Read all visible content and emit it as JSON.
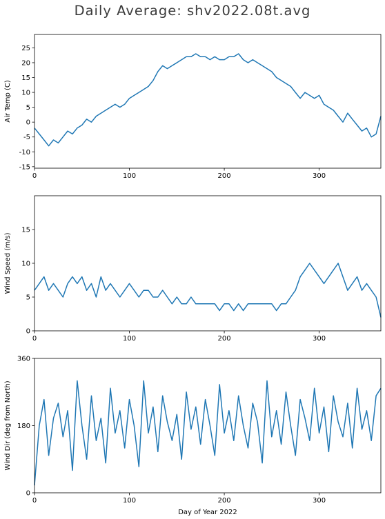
{
  "title": "Daily Average: shv2022.08t.avg",
  "colors": {
    "series": "#1f77b4",
    "axes": "#000000",
    "background": "#ffffff"
  },
  "chart_data": [
    {
      "type": "line",
      "ylabel": "Air Temp (C)",
      "xlabel": "",
      "xlim": [
        0,
        365
      ],
      "ylim": [
        -15.5,
        29.5
      ],
      "xticks": [
        0,
        100,
        200,
        300
      ],
      "yticks": [
        -15,
        -10,
        -5,
        0,
        5,
        10,
        15,
        20,
        25
      ],
      "grid": false,
      "series": [
        {
          "x": [
            0,
            5,
            10,
            15,
            20,
            25,
            30,
            35,
            40,
            45,
            50,
            55,
            60,
            65,
            70,
            75,
            80,
            85,
            90,
            95,
            100,
            105,
            110,
            115,
            120,
            125,
            130,
            135,
            140,
            145,
            150,
            155,
            160,
            165,
            170,
            175,
            180,
            185,
            190,
            195,
            200,
            205,
            210,
            215,
            220,
            225,
            230,
            235,
            240,
            245,
            250,
            255,
            260,
            265,
            270,
            275,
            280,
            285,
            290,
            295,
            300,
            305,
            310,
            315,
            320,
            325,
            330,
            335,
            340,
            345,
            350,
            355,
            360,
            365
          ],
          "y": [
            -2,
            -4,
            -6,
            -8,
            -6,
            -7,
            -5,
            -3,
            -4,
            -2,
            -1,
            1,
            0,
            2,
            3,
            4,
            5,
            6,
            5,
            6,
            8,
            9,
            10,
            11,
            12,
            14,
            17,
            19,
            18,
            19,
            20,
            21,
            22,
            22,
            23,
            22,
            22,
            21,
            22,
            21,
            21,
            22,
            22,
            23,
            21,
            20,
            21,
            20,
            19,
            18,
            17,
            15,
            14,
            13,
            12,
            10,
            8,
            10,
            9,
            8,
            9,
            6,
            5,
            4,
            2,
            0,
            3,
            1,
            -1,
            -3,
            -2,
            -5,
            -4,
            2
          ]
        }
      ]
    },
    {
      "type": "line",
      "ylabel": "Wind Speed (m/s)",
      "xlabel": "",
      "xlim": [
        0,
        365
      ],
      "ylim": [
        0,
        20
      ],
      "xticks": [
        0,
        100,
        200,
        300
      ],
      "yticks": [
        0,
        5,
        10,
        15
      ],
      "grid": false,
      "series": [
        {
          "x": [
            0,
            5,
            10,
            15,
            20,
            25,
            30,
            35,
            40,
            45,
            50,
            55,
            60,
            65,
            70,
            75,
            80,
            85,
            90,
            95,
            100,
            105,
            110,
            115,
            120,
            125,
            130,
            135,
            140,
            145,
            150,
            155,
            160,
            165,
            170,
            175,
            180,
            185,
            190,
            195,
            200,
            205,
            210,
            215,
            220,
            225,
            230,
            235,
            240,
            245,
            250,
            255,
            260,
            265,
            270,
            275,
            280,
            285,
            290,
            295,
            300,
            305,
            310,
            315,
            320,
            325,
            330,
            335,
            340,
            345,
            350,
            355,
            360,
            365
          ],
          "y": [
            6,
            7,
            8,
            6,
            7,
            6,
            5,
            7,
            8,
            7,
            8,
            6,
            7,
            5,
            8,
            6,
            7,
            6,
            5,
            6,
            7,
            6,
            5,
            6,
            6,
            5,
            5,
            6,
            5,
            4,
            5,
            4,
            4,
            5,
            4,
            4,
            4,
            4,
            4,
            3,
            4,
            4,
            3,
            4,
            3,
            4,
            4,
            4,
            4,
            4,
            4,
            3,
            4,
            4,
            5,
            6,
            8,
            9,
            10,
            9,
            8,
            7,
            8,
            9,
            10,
            8,
            6,
            7,
            8,
            6,
            7,
            6,
            5,
            2
          ]
        }
      ]
    },
    {
      "type": "line",
      "ylabel": "Wind Dir (deg from North)",
      "xlabel": "Day of Year 2022",
      "xlim": [
        0,
        365
      ],
      "ylim": [
        0,
        360
      ],
      "xticks": [
        0,
        100,
        200,
        300
      ],
      "yticks": [
        0,
        180,
        360
      ],
      "grid": false,
      "series": [
        {
          "x": [
            0,
            5,
            10,
            15,
            20,
            25,
            30,
            35,
            40,
            45,
            50,
            55,
            60,
            65,
            70,
            75,
            80,
            85,
            90,
            95,
            100,
            105,
            110,
            115,
            120,
            125,
            130,
            135,
            140,
            145,
            150,
            155,
            160,
            165,
            170,
            175,
            180,
            185,
            190,
            195,
            200,
            205,
            210,
            215,
            220,
            225,
            230,
            235,
            240,
            245,
            250,
            255,
            260,
            265,
            270,
            275,
            280,
            285,
            290,
            295,
            300,
            305,
            310,
            315,
            320,
            325,
            330,
            335,
            340,
            345,
            350,
            355,
            360,
            365
          ],
          "y": [
            20,
            180,
            250,
            100,
            200,
            240,
            150,
            220,
            60,
            300,
            180,
            90,
            260,
            140,
            200,
            80,
            280,
            160,
            220,
            120,
            250,
            180,
            70,
            300,
            160,
            230,
            110,
            260,
            190,
            140,
            210,
            90,
            270,
            170,
            230,
            130,
            250,
            180,
            100,
            290,
            160,
            220,
            140,
            260,
            180,
            120,
            240,
            190,
            80,
            300,
            150,
            220,
            130,
            270,
            180,
            100,
            250,
            200,
            140,
            280,
            160,
            230,
            110,
            260,
            190,
            150,
            240,
            120,
            280,
            170,
            220,
            140,
            260,
            280
          ]
        }
      ]
    }
  ]
}
